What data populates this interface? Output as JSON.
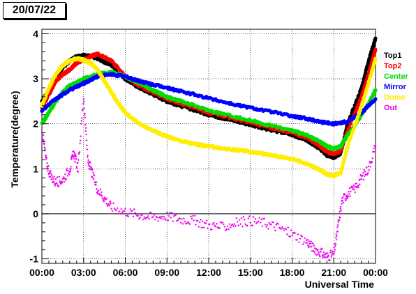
{
  "date_label": "20/07/22",
  "chart_data": {
    "type": "scatter",
    "title": "",
    "xlabel": "Universal Time",
    "ylabel": "Temperature(degree)",
    "xlim": [
      0,
      24
    ],
    "ylim": [
      -1.1,
      4.1
    ],
    "grid": true,
    "legend_position": "right",
    "x_ticks": [
      0,
      3,
      6,
      9,
      12,
      15,
      18,
      21,
      24
    ],
    "x_tick_labels": [
      "00:00",
      "03:00",
      "06:00",
      "09:00",
      "12:00",
      "15:00",
      "18:00",
      "21:00",
      "00:00"
    ],
    "y_ticks": [
      -1,
      0,
      1,
      2,
      3,
      4
    ],
    "y_tick_labels": [
      "-1",
      "0",
      "1",
      "2",
      "3",
      "4"
    ],
    "series": [
      {
        "name": "Top1",
        "color": "#000000",
        "x": [
          0,
          0.5,
          1,
          1.5,
          2,
          2.5,
          3,
          3.5,
          4,
          5,
          6,
          7,
          8,
          9,
          10,
          12,
          14,
          16,
          18,
          19,
          20,
          20.5,
          21,
          21.5,
          22,
          23,
          23.5,
          24
        ],
        "y": [
          2.5,
          2.75,
          3.0,
          3.25,
          3.4,
          3.5,
          3.52,
          3.5,
          3.45,
          3.3,
          3.0,
          2.8,
          2.65,
          2.5,
          2.4,
          2.2,
          2.05,
          1.9,
          1.75,
          1.65,
          1.45,
          1.3,
          1.25,
          1.35,
          2.0,
          2.8,
          3.4,
          3.9
        ]
      },
      {
        "name": "Top2",
        "color": "#ff0000",
        "x": [
          0,
          0.5,
          1,
          1.5,
          2,
          2.5,
          3,
          3.5,
          4,
          5,
          6,
          7,
          8,
          9,
          10,
          12,
          14,
          16,
          18,
          19,
          20,
          20.5,
          21,
          21.5,
          22,
          23,
          23.5,
          24
        ],
        "y": [
          2.35,
          2.65,
          2.95,
          3.1,
          3.2,
          3.35,
          3.42,
          3.5,
          3.55,
          3.4,
          3.05,
          2.85,
          2.7,
          2.55,
          2.45,
          2.25,
          2.1,
          1.95,
          1.8,
          1.7,
          1.5,
          1.38,
          1.32,
          1.4,
          1.85,
          2.6,
          3.1,
          3.65
        ]
      },
      {
        "name": "Center",
        "color": "#00dd00",
        "x": [
          0,
          0.5,
          1,
          1.5,
          2,
          3,
          4,
          5,
          6,
          7,
          8,
          9,
          10,
          12,
          14,
          16,
          18,
          19,
          20,
          20.5,
          21,
          21.5,
          22,
          23,
          23.5,
          24
        ],
        "y": [
          2.0,
          2.25,
          2.5,
          2.7,
          2.85,
          3.0,
          3.1,
          3.15,
          3.05,
          2.9,
          2.75,
          2.6,
          2.5,
          2.3,
          2.15,
          2.0,
          1.85,
          1.75,
          1.6,
          1.5,
          1.45,
          1.5,
          1.75,
          2.2,
          2.45,
          2.75
        ]
      },
      {
        "name": "Mirror",
        "color": "#0000ff",
        "x": [
          0,
          1,
          2,
          3,
          4,
          5,
          6,
          7,
          8,
          9,
          10,
          12,
          14,
          16,
          18,
          19,
          20,
          21,
          22,
          23,
          24
        ],
        "y": [
          2.3,
          2.55,
          2.75,
          2.9,
          3.05,
          3.1,
          3.05,
          2.95,
          2.87,
          2.8,
          2.72,
          2.57,
          2.42,
          2.3,
          2.17,
          2.12,
          2.05,
          2.0,
          2.05,
          2.25,
          2.55
        ]
      },
      {
        "name": "Dome",
        "color": "#ffee00",
        "x": [
          0,
          0.5,
          1,
          1.5,
          2,
          2.5,
          3,
          3.5,
          4,
          4.5,
          5,
          5.5,
          6,
          7,
          8,
          9,
          10,
          11,
          12,
          13,
          14,
          15,
          16,
          17,
          18,
          19,
          20,
          20.5,
          21,
          21.5,
          22,
          23,
          23.5,
          24
        ],
        "y": [
          2.4,
          2.8,
          3.1,
          3.3,
          3.4,
          3.45,
          3.42,
          3.35,
          3.2,
          2.95,
          2.7,
          2.45,
          2.25,
          2.0,
          1.85,
          1.72,
          1.62,
          1.55,
          1.5,
          1.45,
          1.42,
          1.38,
          1.33,
          1.28,
          1.22,
          1.12,
          0.98,
          0.88,
          0.85,
          0.92,
          1.5,
          2.4,
          2.9,
          3.45
        ]
      },
      {
        "name": "Out",
        "color": "#ee00ee",
        "x": [
          0,
          0.3,
          0.6,
          1,
          1.5,
          2,
          2.3,
          2.6,
          3,
          3.3,
          3.6,
          4,
          4.5,
          5,
          6,
          7,
          8,
          9,
          10,
          11,
          12,
          13,
          14,
          15,
          16,
          17,
          18,
          19,
          19.5,
          20,
          20.5,
          21,
          21.3,
          21.6,
          22,
          22.5,
          23,
          23.5,
          24
        ],
        "y": [
          1.9,
          1.2,
          0.85,
          0.7,
          0.75,
          1.0,
          1.35,
          1.0,
          2.6,
          1.2,
          0.9,
          0.55,
          0.35,
          0.15,
          0.05,
          -0.02,
          -0.08,
          -0.05,
          -0.12,
          -0.15,
          -0.25,
          -0.3,
          -0.2,
          -0.15,
          -0.2,
          -0.3,
          -0.45,
          -0.6,
          -0.75,
          -0.85,
          -0.95,
          -0.9,
          -0.3,
          0.3,
          0.45,
          0.55,
          0.8,
          1.0,
          1.5
        ]
      }
    ]
  }
}
